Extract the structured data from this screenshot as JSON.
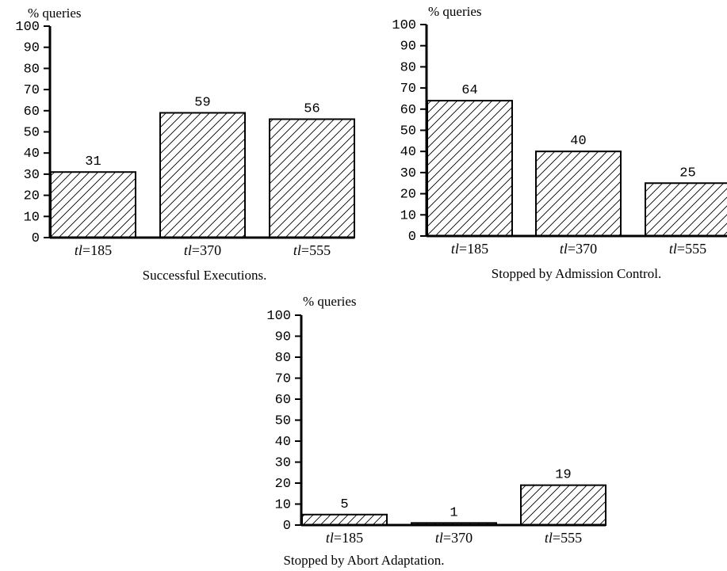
{
  "chart_data": [
    {
      "type": "bar",
      "title": "Successful Executions.",
      "ylabel": "% queries",
      "ylim": [
        0,
        100
      ],
      "yticks": [
        "0",
        "10",
        "20",
        "30",
        "40",
        "50",
        "60",
        "70",
        "80",
        "90",
        "100"
      ],
      "categories": [
        {
          "prefix": "tl",
          "suffix": "=185"
        },
        {
          "prefix": "tl",
          "suffix": "=370"
        },
        {
          "prefix": "tl",
          "suffix": "=555"
        }
      ],
      "values": [
        31,
        59,
        56
      ],
      "value_labels": [
        "31",
        "59",
        "56"
      ],
      "bar_fill": "diagonal-hatch",
      "grid": false
    },
    {
      "type": "bar",
      "title": "Stopped by Admission Control.",
      "ylabel": "% queries",
      "ylim": [
        0,
        100
      ],
      "yticks": [
        "0",
        "10",
        "20",
        "30",
        "40",
        "50",
        "60",
        "70",
        "80",
        "90",
        "100"
      ],
      "categories": [
        {
          "prefix": "tl",
          "suffix": "=185"
        },
        {
          "prefix": "tl",
          "suffix": "=370"
        },
        {
          "prefix": "tl",
          "suffix": "=555"
        }
      ],
      "values": [
        64,
        40,
        25
      ],
      "value_labels": [
        "64",
        "40",
        "25"
      ],
      "bar_fill": "diagonal-hatch",
      "grid": false
    },
    {
      "type": "bar",
      "title": "Stopped by Abort Adaptation.",
      "ylabel": "% queries",
      "ylim": [
        0,
        100
      ],
      "yticks": [
        "0",
        "10",
        "20",
        "30",
        "40",
        "50",
        "60",
        "70",
        "80",
        "90",
        "100"
      ],
      "categories": [
        {
          "prefix": "tl",
          "suffix": "=185"
        },
        {
          "prefix": "tl",
          "suffix": "=370"
        },
        {
          "prefix": "tl",
          "suffix": "=555"
        }
      ],
      "values": [
        5,
        1,
        19
      ],
      "value_labels": [
        "5",
        "1",
        "19"
      ],
      "bar_fill": "diagonal-hatch",
      "grid": false
    }
  ],
  "colors": {
    "ink": "#000000",
    "background": "#ffffff"
  }
}
